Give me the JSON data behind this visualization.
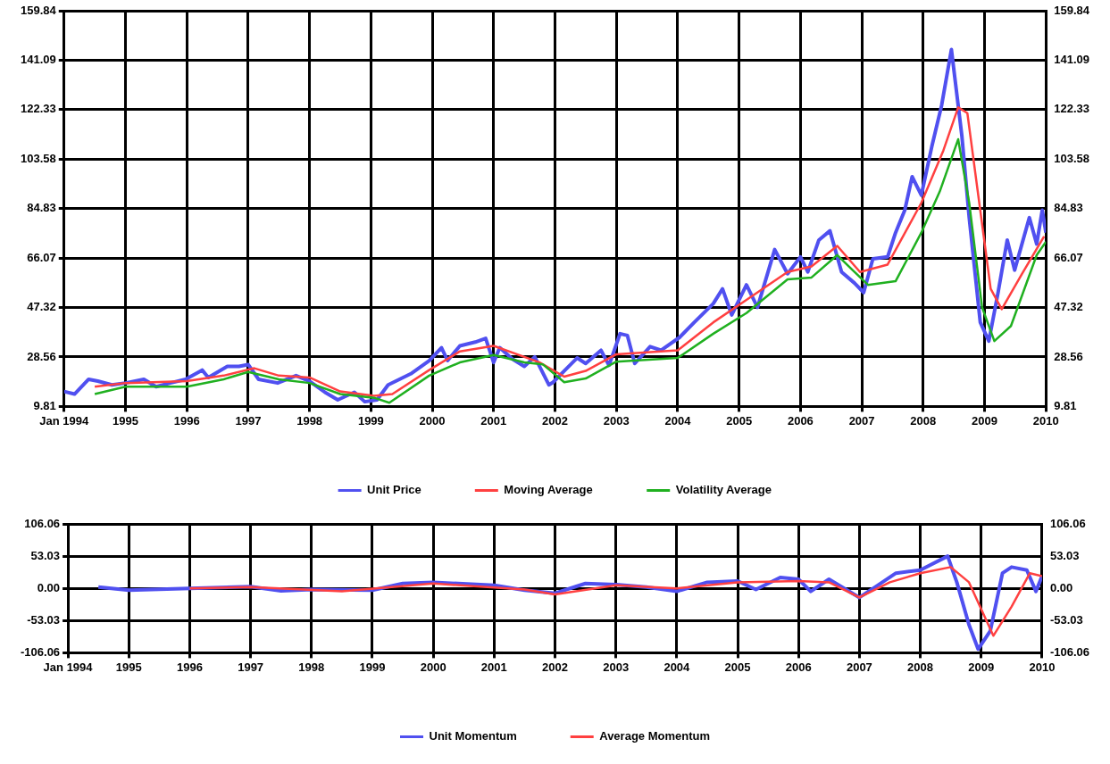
{
  "chart_data": [
    {
      "type": "line",
      "xlim": [
        1994,
        2010
      ],
      "xticks": [
        {
          "value": 1994,
          "label": "Jan 1994"
        },
        1995,
        1996,
        1997,
        1998,
        1999,
        2000,
        2001,
        2002,
        2003,
        2004,
        2005,
        2006,
        2007,
        2008,
        2009,
        2010
      ],
      "ylim": [
        9.81,
        159.84
      ],
      "yticks": [
        9.81,
        28.56,
        47.32,
        66.07,
        84.83,
        103.58,
        122.33,
        141.09,
        159.84
      ],
      "y2lim": [
        9.81,
        159.84
      ],
      "y2ticks": [
        9.81,
        28.56,
        47.32,
        66.07,
        84.83,
        103.58,
        122.33,
        141.09,
        159.84
      ],
      "grid": true,
      "legend": "bottom",
      "marker": "none",
      "line_style": "solid",
      "series": [
        {
          "name": "Unit Price",
          "color": "#5050f0",
          "x": [
            1994.0,
            1994.17,
            1994.4,
            1994.55,
            1994.78,
            1995.0,
            1995.3,
            1995.5,
            1995.73,
            1995.98,
            1996.25,
            1996.35,
            1996.66,
            1996.85,
            1997.0,
            1997.17,
            1997.48,
            1997.78,
            1998.0,
            1998.25,
            1998.46,
            1998.73,
            1998.9,
            1999.1,
            1999.28,
            1999.65,
            1999.95,
            2000.15,
            2000.25,
            2000.45,
            2000.7,
            2000.87,
            2001.0,
            2001.1,
            2001.3,
            2001.5,
            2001.67,
            2001.9,
            2001.97,
            2002.15,
            2002.36,
            2002.5,
            2002.75,
            2002.88,
            2003.06,
            2003.18,
            2003.3,
            2003.55,
            2003.73,
            2004.03,
            2004.27,
            2004.58,
            2004.73,
            2004.88,
            2005.12,
            2005.3,
            2005.58,
            2005.79,
            2006.0,
            2006.12,
            2006.3,
            2006.48,
            2006.67,
            2006.88,
            2007.03,
            2007.18,
            2007.42,
            2007.55,
            2007.7,
            2007.82,
            2007.97,
            2008.14,
            2008.3,
            2008.46,
            2008.63,
            2008.75,
            2008.93,
            2009.07,
            2009.22,
            2009.37,
            2009.49,
            2009.73,
            2009.85,
            2009.94,
            2010.0
          ],
          "values": [
            15.5,
            14.5,
            20.1,
            19.4,
            18.0,
            18.7,
            20.1,
            17.3,
            18.7,
            20.1,
            23.6,
            20.8,
            25.0,
            25.0,
            25.7,
            20.1,
            18.7,
            21.5,
            19.4,
            15.2,
            12.3,
            15.2,
            11.6,
            12.3,
            18.0,
            22.2,
            27.2,
            32.1,
            27.2,
            32.8,
            34.2,
            35.6,
            26.5,
            32.1,
            27.9,
            25.0,
            28.6,
            18.0,
            19.0,
            23.3,
            28.2,
            26.1,
            31.1,
            25.4,
            37.4,
            36.7,
            26.1,
            32.5,
            31.1,
            36.0,
            41.7,
            48.8,
            54.4,
            44.5,
            55.9,
            47.4,
            69.3,
            60.1,
            66.5,
            60.8,
            72.9,
            76.4,
            60.8,
            56.6,
            53.0,
            65.8,
            66.5,
            75.7,
            84.2,
            96.9,
            89.9,
            108.3,
            123.9,
            145.1,
            112.5,
            81.4,
            41.7,
            34.6,
            53.0,
            72.9,
            61.5,
            81.4,
            71.4,
            84.2,
            75.7
          ]
        },
        {
          "name": "Moving Average",
          "color": "#ff4040",
          "x": [
            1994.5,
            1995.0,
            1996.0,
            1996.6,
            1997.1,
            1997.5,
            1998.0,
            1998.5,
            1999.05,
            1999.35,
            1999.95,
            2000.45,
            2001.0,
            2001.5,
            2001.75,
            2002.15,
            2002.5,
            2003.0,
            2004.0,
            2004.58,
            2005.12,
            2005.79,
            2006.18,
            2006.6,
            2006.97,
            2007.42,
            2007.97,
            2008.33,
            2008.57,
            2008.72,
            2008.93,
            2009.1,
            2009.28,
            2009.61,
            2009.97
          ],
          "values": [
            17.3,
            18.7,
            19.4,
            21.5,
            24.3,
            21.5,
            20.8,
            15.5,
            13.8,
            14.5,
            23.6,
            30.7,
            32.8,
            28.6,
            26.5,
            21.1,
            23.3,
            29.6,
            31.1,
            41.7,
            50.2,
            60.8,
            62.9,
            70.7,
            60.8,
            63.6,
            87.0,
            106.9,
            123.2,
            121.0,
            84.2,
            54.4,
            46.7,
            60.1,
            74.3
          ]
        },
        {
          "name": "Volatility Average",
          "color": "#20b020",
          "x": [
            1994.5,
            1995.0,
            1996.0,
            1996.6,
            1997.0,
            1997.5,
            1998.0,
            1998.5,
            1999.05,
            1999.3,
            1999.95,
            2000.45,
            2001.0,
            2001.5,
            2001.8,
            2002.15,
            2002.5,
            2003.0,
            2004.0,
            2004.58,
            2005.12,
            2005.79,
            2006.18,
            2006.6,
            2006.85,
            2007.1,
            2007.55,
            2007.97,
            2008.27,
            2008.57,
            2008.75,
            2008.96,
            2009.16,
            2009.43,
            2009.85,
            2010.0
          ],
          "values": [
            14.5,
            17.3,
            17.3,
            20.1,
            22.9,
            20.1,
            18.7,
            14.5,
            13.1,
            11.2,
            21.5,
            26.5,
            29.3,
            26.5,
            25.8,
            19.0,
            20.4,
            26.8,
            28.2,
            37.4,
            45.2,
            58.0,
            58.7,
            67.2,
            61.5,
            55.9,
            57.3,
            75.7,
            91.3,
            111.1,
            87.0,
            47.4,
            34.6,
            40.3,
            67.2,
            72.2
          ]
        }
      ]
    },
    {
      "type": "line",
      "xlim": [
        1994,
        2010
      ],
      "xticks": [
        {
          "value": 1994,
          "label": "Jan 1994"
        },
        1995,
        1996,
        1997,
        1998,
        1999,
        2000,
        2001,
        2002,
        2003,
        2004,
        2005,
        2006,
        2007,
        2008,
        2009,
        2010
      ],
      "ylim": [
        -106.06,
        106.06
      ],
      "yticks": [
        -106.06,
        -53.03,
        {
          "value": 0,
          "label": "0.00"
        },
        53.03,
        106.06
      ],
      "y2lim": [
        -106.06,
        106.06
      ],
      "y2ticks": [
        -106.06,
        -53.03,
        {
          "value": 0,
          "label": "0.00"
        },
        53.03,
        106.06
      ],
      "grid": true,
      "legend": "bottom",
      "marker": "none",
      "line_style": "solid",
      "series": [
        {
          "name": "Unit Momentum",
          "color": "#5050f0",
          "x": [
            1994.5,
            1995.0,
            1996.0,
            1997.0,
            1997.5,
            1998.0,
            1999.0,
            1999.5,
            2000.0,
            2001.0,
            2001.5,
            2002.0,
            2002.5,
            2003.0,
            2003.5,
            2004.0,
            2004.5,
            2005.0,
            2005.3,
            2005.7,
            2006.0,
            2006.2,
            2006.5,
            2007.0,
            2007.3,
            2007.6,
            2008.0,
            2008.45,
            2008.6,
            2008.8,
            2008.95,
            2009.15,
            2009.35,
            2009.5,
            2009.75,
            2009.9,
            2010.0
          ],
          "values": [
            2,
            -3,
            0,
            3,
            -4,
            -2,
            -3,
            8,
            10,
            5,
            -3,
            -8,
            8,
            6,
            2,
            -5,
            10,
            12,
            -2,
            18,
            15,
            -5,
            15,
            -15,
            5,
            25,
            30,
            53,
            10,
            -60,
            -100,
            -70,
            25,
            35,
            30,
            -5,
            20
          ]
        },
        {
          "name": "Average Momentum",
          "color": "#ff4040",
          "x": [
            1996.0,
            1997.0,
            1998.5,
            2000.0,
            2001.5,
            2002.0,
            2003.0,
            2004.0,
            2005.0,
            2006.0,
            2006.5,
            2007.0,
            2007.5,
            2008.0,
            2008.5,
            2008.8,
            2009.2,
            2009.5,
            2009.8,
            2010.0
          ],
          "values": [
            0,
            2,
            -5,
            8,
            -2,
            -10,
            5,
            0,
            10,
            12,
            10,
            -15,
            10,
            25,
            35,
            10,
            -78,
            -30,
            25,
            20
          ]
        }
      ]
    }
  ]
}
